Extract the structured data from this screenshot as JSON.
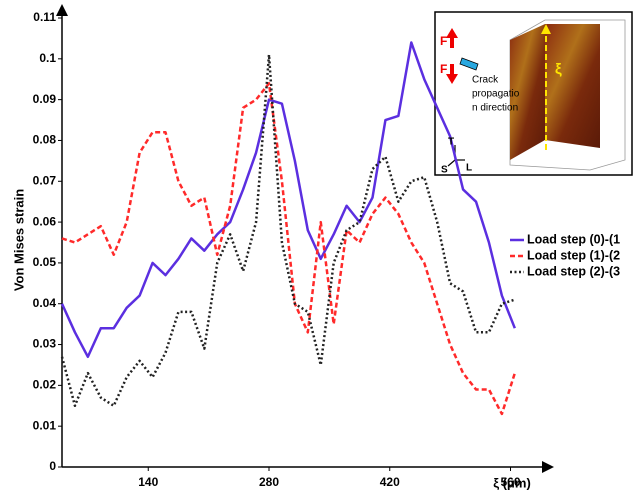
{
  "chart_data": {
    "type": "line",
    "ylabel": "Von Mises strain",
    "xlabel": "ξ (μm)",
    "x": [
      40,
      55,
      70,
      85,
      100,
      115,
      130,
      145,
      160,
      175,
      190,
      205,
      220,
      235,
      250,
      265,
      280,
      295,
      310,
      325,
      340,
      355,
      370,
      385,
      400,
      415,
      430,
      445,
      460,
      475,
      490,
      505,
      520,
      535,
      550,
      565
    ],
    "series": [
      {
        "name": "Load step (0)-(1",
        "color": "#5b2fe0",
        "style": "solid",
        "values": [
          0.04,
          0.033,
          0.027,
          0.034,
          0.034,
          0.039,
          0.042,
          0.05,
          0.047,
          0.051,
          0.056,
          0.053,
          0.057,
          0.06,
          0.068,
          0.077,
          0.09,
          0.089,
          0.075,
          0.058,
          0.051,
          0.057,
          0.064,
          0.06,
          0.066,
          0.085,
          0.086,
          0.104,
          0.095,
          0.088,
          0.081,
          0.068,
          0.065,
          0.055,
          0.042,
          0.034
        ]
      },
      {
        "name": "Load step (1)-(2",
        "color": "#ff2a2a",
        "style": "dashed",
        "values": [
          0.056,
          0.055,
          0.057,
          0.059,
          0.052,
          0.06,
          0.077,
          0.082,
          0.082,
          0.07,
          0.064,
          0.066,
          0.052,
          0.064,
          0.088,
          0.09,
          0.094,
          0.07,
          0.04,
          0.033,
          0.06,
          0.035,
          0.058,
          0.055,
          0.062,
          0.066,
          0.062,
          0.055,
          0.05,
          0.04,
          0.03,
          0.023,
          0.019,
          0.019,
          0.013,
          0.023
        ]
      },
      {
        "name": "Load step (2)-(3",
        "color": "#222222",
        "style": "dotted",
        "values": [
          0.027,
          0.015,
          0.023,
          0.017,
          0.015,
          0.022,
          0.026,
          0.022,
          0.028,
          0.038,
          0.038,
          0.029,
          0.05,
          0.057,
          0.048,
          0.06,
          0.101,
          0.055,
          0.04,
          0.038,
          0.025,
          0.05,
          0.058,
          0.06,
          0.073,
          0.076,
          0.065,
          0.07,
          0.071,
          0.06,
          0.045,
          0.043,
          0.033,
          0.033,
          0.04,
          0.041
        ]
      }
    ],
    "xlim": [
      40,
      600
    ],
    "xticks": [
      140,
      280,
      420,
      560
    ],
    "ylim": [
      0,
      0.11
    ],
    "yticks": [
      0,
      0.01,
      0.02,
      0.03,
      0.04,
      0.05,
      0.06,
      0.07,
      0.08,
      0.09,
      0.1,
      0.11
    ],
    "grid": false,
    "legend": "right",
    "inset": {
      "force_top": "F",
      "force_bottom": "F",
      "crack_lines": [
        "Crack",
        "propagatio",
        "n direction"
      ],
      "axis_t": "T",
      "axis_s": "S",
      "axis_l": "L",
      "xi": "ξ"
    }
  }
}
